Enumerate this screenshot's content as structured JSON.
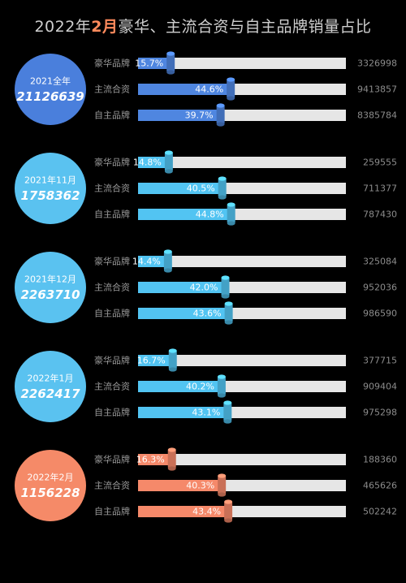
{
  "title": {
    "before": "2022年",
    "highlight": "2月",
    "after": "豪华、主流合资与自主品牌销量占比"
  },
  "colors": {
    "background": "#000000",
    "track": "#e6e6e6",
    "label": "#9a9a9a",
    "value": "#8c8c8c"
  },
  "chart_data": {
    "type": "bar",
    "orientation": "horizontal",
    "xlim": [
      0,
      100
    ],
    "categories": [
      "豪华品牌",
      "主流合资",
      "自主品牌"
    ],
    "groups": [
      {
        "period": "2021全年",
        "total": "21126639",
        "color": "#4f86e0",
        "circle_color": "#4a7fdc",
        "shares": [
          15.7,
          44.6,
          39.7
        ],
        "share_labels": [
          "15.7%",
          "44.6%",
          "39.7%"
        ],
        "volumes": [
          "3326998",
          "9413857",
          "8385784"
        ]
      },
      {
        "period": "2021年11月",
        "total": "1758362",
        "color": "#52c4f2",
        "circle_color": "#5ac2f0",
        "shares": [
          14.8,
          40.5,
          44.8
        ],
        "share_labels": [
          "14.8%",
          "40.5%",
          "44.8%"
        ],
        "volumes": [
          "259555",
          "711377",
          "787430"
        ]
      },
      {
        "period": "2021年12月",
        "total": "2263710",
        "color": "#52c4f2",
        "circle_color": "#5ac2f0",
        "shares": [
          14.4,
          42.0,
          43.6
        ],
        "share_labels": [
          "14.4%",
          "42.0%",
          "43.6%"
        ],
        "volumes": [
          "325084",
          "952036",
          "986590"
        ]
      },
      {
        "period": "2022年1月",
        "total": "2262417",
        "color": "#52c4f2",
        "circle_color": "#5ac2f0",
        "shares": [
          16.7,
          40.2,
          43.1
        ],
        "share_labels": [
          "16.7%",
          "40.2%",
          "43.1%"
        ],
        "volumes": [
          "377715",
          "909404",
          "975298"
        ]
      },
      {
        "period": "2022年2月",
        "total": "1156228",
        "color": "#f5896a",
        "circle_color": "#f58a68",
        "shares": [
          16.3,
          40.3,
          43.4
        ],
        "share_labels": [
          "16.3%",
          "40.3%",
          "43.4%"
        ],
        "volumes": [
          "188360",
          "465626",
          "502242"
        ]
      }
    ]
  }
}
